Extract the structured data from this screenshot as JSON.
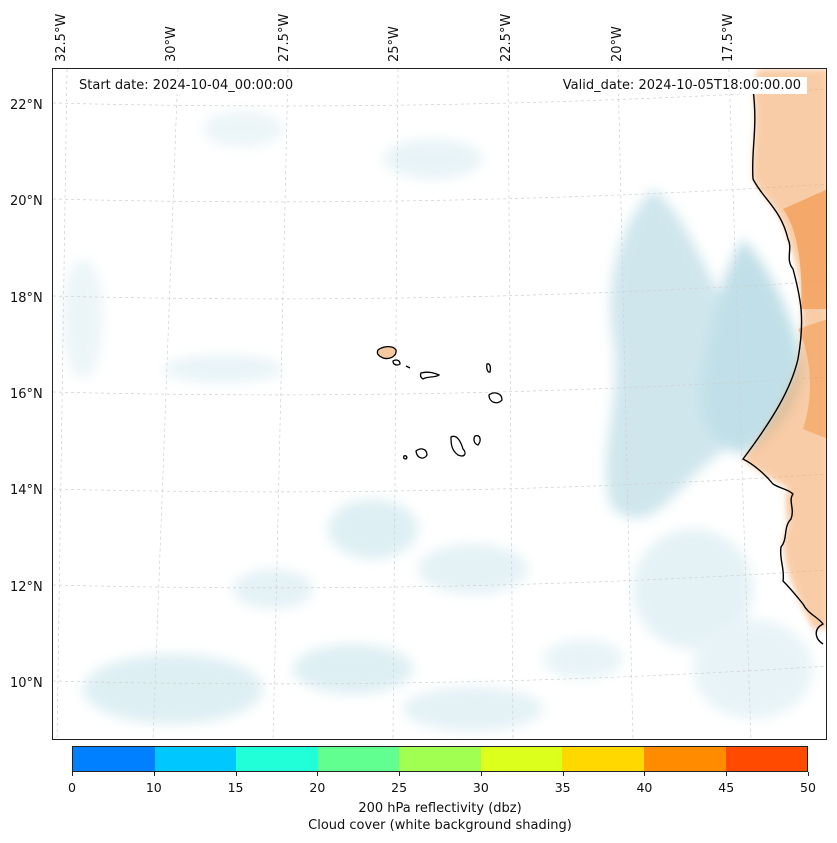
{
  "map": {
    "lon_labels": [
      "32.5°W",
      "30°W",
      "27.5°W",
      "25°W",
      "22.5°W",
      "20°W",
      "17.5°W"
    ],
    "lat_labels": [
      "22°N",
      "20°N",
      "18°N",
      "16°N",
      "14°N",
      "12°N",
      "10°N"
    ],
    "start_date": "Start date: 2024-10-04_00:00:00",
    "valid_date": "Valid_date: 2024-10-05T18:00:00.00",
    "land_color": "#f4a460",
    "cloud_color": "#a8d3df"
  },
  "colorbar": {
    "colors": [
      "#0080ff",
      "#00c8ff",
      "#20ffd8",
      "#60ff90",
      "#a0ff50",
      "#dcff1c",
      "#ffd800",
      "#ff8c00",
      "#ff4a00"
    ],
    "ticks": [
      "0",
      "10",
      "15",
      "20",
      "25",
      "30",
      "35",
      "40",
      "45",
      "50"
    ],
    "label": "200 hPa reflectivity (dbz)",
    "sublabel": "Cloud cover (white background shading)"
  }
}
